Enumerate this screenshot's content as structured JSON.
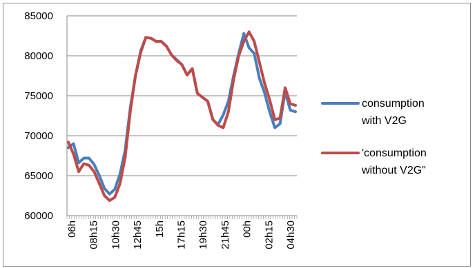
{
  "chart_data": {
    "type": "line",
    "title": "",
    "xlabel": "",
    "ylabel": "",
    "ylim": [
      60000,
      85000
    ],
    "yticks": [
      60000,
      65000,
      70000,
      75000,
      80000,
      85000
    ],
    "grid": true,
    "legend_placement": "right",
    "x_ticks": [
      "06h",
      "08h15",
      "10h30",
      "12h45",
      "15h",
      "17h15",
      "19h30",
      "21h45",
      "00h",
      "02h15",
      "04h30"
    ],
    "series": [
      {
        "name": "consumption with V2G",
        "color": "#4a7ebb",
        "values": [
          68500,
          69000,
          66600,
          67200,
          67200,
          66400,
          65000,
          63400,
          62700,
          63300,
          65200,
          68200,
          73500,
          77500,
          80600,
          82300,
          82200,
          81800,
          81800,
          81200,
          80100,
          79500,
          78900,
          77600,
          78400,
          75300,
          74800,
          74300,
          72000,
          71400,
          72600,
          74300,
          77500,
          80300,
          82800,
          81000,
          80300,
          77200,
          75400,
          73000,
          71000,
          71500,
          75500,
          73200,
          73000
        ]
      },
      {
        "name": "'consumption without V2G\"",
        "color": "#be4b48",
        "values": [
          69200,
          67700,
          65500,
          66500,
          66300,
          65500,
          64000,
          62500,
          61900,
          62300,
          64000,
          67300,
          73000,
          77500,
          80400,
          82300,
          82200,
          81800,
          81800,
          81200,
          80100,
          79400,
          78900,
          77600,
          78400,
          75300,
          74800,
          74300,
          72000,
          71300,
          71000,
          73000,
          77000,
          80000,
          81800,
          83000,
          81800,
          79200,
          76600,
          74500,
          72000,
          72200,
          76000,
          74000,
          73800
        ]
      }
    ]
  }
}
